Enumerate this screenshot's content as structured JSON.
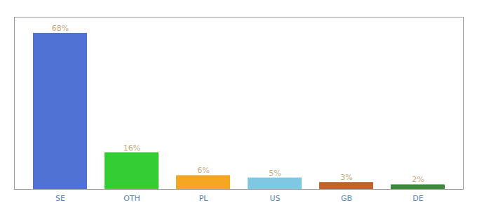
{
  "chart_data": {
    "type": "bar",
    "categories": [
      "SE",
      "OTH",
      "PL",
      "US",
      "GB",
      "DE"
    ],
    "values": [
      68,
      16,
      6,
      5,
      3,
      2
    ],
    "value_labels": [
      "68%",
      "16%",
      "6%",
      "5%",
      "3%",
      "2%"
    ],
    "colors": [
      "#4f72d4",
      "#33cc33",
      "#f5a623",
      "#7ec8e3",
      "#c0622a",
      "#3a8a3a"
    ],
    "ylim": [
      0,
      75
    ],
    "data_labels": true,
    "tick_labels": "x"
  }
}
